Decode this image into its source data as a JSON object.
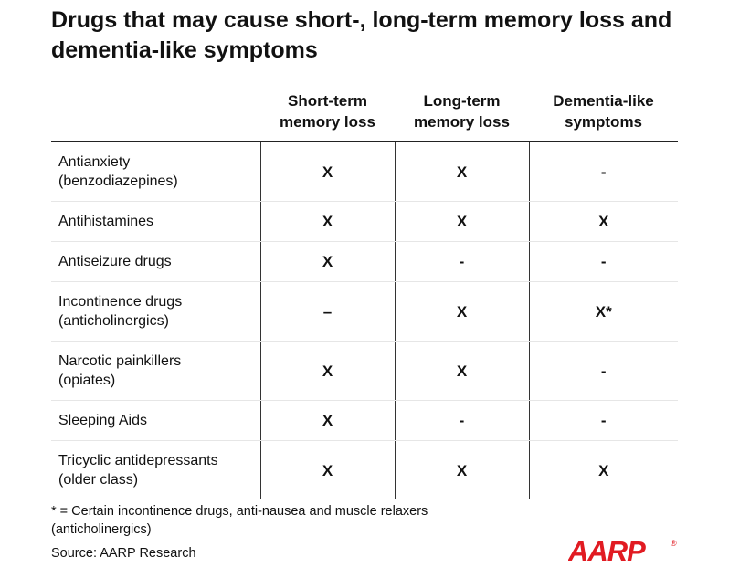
{
  "title": "Drugs that may cause short-, long-term memory loss and dementia-like symptoms",
  "columns": [
    "",
    "Short-term\nmemory loss",
    "Long-term\nmemory loss",
    "Dementia-like\nsymptoms"
  ],
  "rows": [
    {
      "drug": "Antianxiety\n(benzodiazepines)",
      "short_term": "X",
      "long_term": "X",
      "dementia": "-"
    },
    {
      "drug": "Antihistamines",
      "short_term": "X",
      "long_term": "X",
      "dementia": "X"
    },
    {
      "drug": "Antiseizure drugs",
      "short_term": "X",
      "long_term": "-",
      "dementia": "-"
    },
    {
      "drug": "Incontinence drugs\n(anticholinergics)",
      "short_term": "–",
      "long_term": "X",
      "dementia": "X*"
    },
    {
      "drug": "Narcotic painkillers\n(opiates)",
      "short_term": "X",
      "long_term": "X",
      "dementia": "-"
    },
    {
      "drug": "Sleeping Aids",
      "short_term": "X",
      "long_term": "-",
      "dementia": "-"
    },
    {
      "drug": "Tricyclic antidepressants\n(older class)",
      "short_term": "X",
      "long_term": "X",
      "dementia": "X"
    }
  ],
  "footnote": "* = Certain incontinence drugs, anti-nausea and muscle relaxers\n(anticholinergics)",
  "source": "Source: AARP Research",
  "logo": {
    "text": "AARP",
    "registered": "®",
    "color": "#e11b22"
  }
}
